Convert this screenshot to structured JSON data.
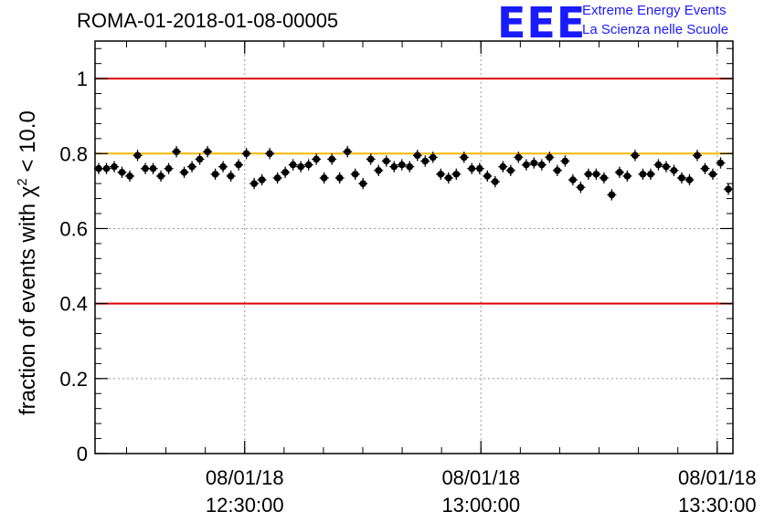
{
  "header": {
    "title": "ROMA-01-2018-01-08-00005",
    "logo_text": "EEE",
    "logo_line1": "Extreme Energy Events",
    "logo_line2": "La Scienza nelle Scuole"
  },
  "chart_data": {
    "type": "scatter",
    "title": "ROMA-01-2018-01-08-00005",
    "xlabel": "",
    "ylabel_prefix": "fraction of events with ",
    "ylabel_chi": "χ",
    "ylabel_exp": "2",
    "ylabel_suffix": " < 10.0",
    "ylim": [
      0,
      1.1
    ],
    "yticks": [
      0,
      0.2,
      0.4,
      0.6,
      0.8,
      1
    ],
    "ytick_labels": [
      "0",
      "0.2",
      "0.4",
      "0.6",
      "0.8",
      "1"
    ],
    "xlim_minutes": [
      12.1833,
      13.5333
    ],
    "xtick_minutes": [
      12.5,
      13.0,
      13.5
    ],
    "xtick_labels": [
      {
        "date": "08/01/18",
        "time": "12:30:00"
      },
      {
        "date": "08/01/18",
        "time": "13:00:00"
      },
      {
        "date": "08/01/18",
        "time": "13:30:00"
      }
    ],
    "grid": true,
    "reference_lines": [
      {
        "y": 1.0,
        "color": "#e00000"
      },
      {
        "y": 0.4,
        "color": "#e00000"
      },
      {
        "y": 0.8,
        "color": "#f5b800"
      }
    ],
    "marker_color": "#000000",
    "series": [
      {
        "values": [
          0.76,
          0.76,
          0.765,
          0.75,
          0.74,
          0.795,
          0.76,
          0.76,
          0.74,
          0.76,
          0.805,
          0.75,
          0.765,
          0.785,
          0.805,
          0.745,
          0.765,
          0.74,
          0.77,
          0.8,
          0.72,
          0.73,
          0.8,
          0.735,
          0.75,
          0.77,
          0.765,
          0.77,
          0.785,
          0.735,
          0.785,
          0.735,
          0.805,
          0.745,
          0.72,
          0.785,
          0.755,
          0.78,
          0.765,
          0.77,
          0.765,
          0.795,
          0.78,
          0.79,
          0.745,
          0.735,
          0.745,
          0.79,
          0.76,
          0.76,
          0.74,
          0.725,
          0.765,
          0.755,
          0.79,
          0.77,
          0.775,
          0.77,
          0.79,
          0.755,
          0.78,
          0.73,
          0.71,
          0.745,
          0.745,
          0.735,
          0.69,
          0.75,
          0.74,
          0.795,
          0.745,
          0.745,
          0.77,
          0.765,
          0.755,
          0.735,
          0.73,
          0.795,
          0.76,
          0.745,
          0.775,
          0.705
        ],
        "errors": 0.015
      }
    ]
  }
}
